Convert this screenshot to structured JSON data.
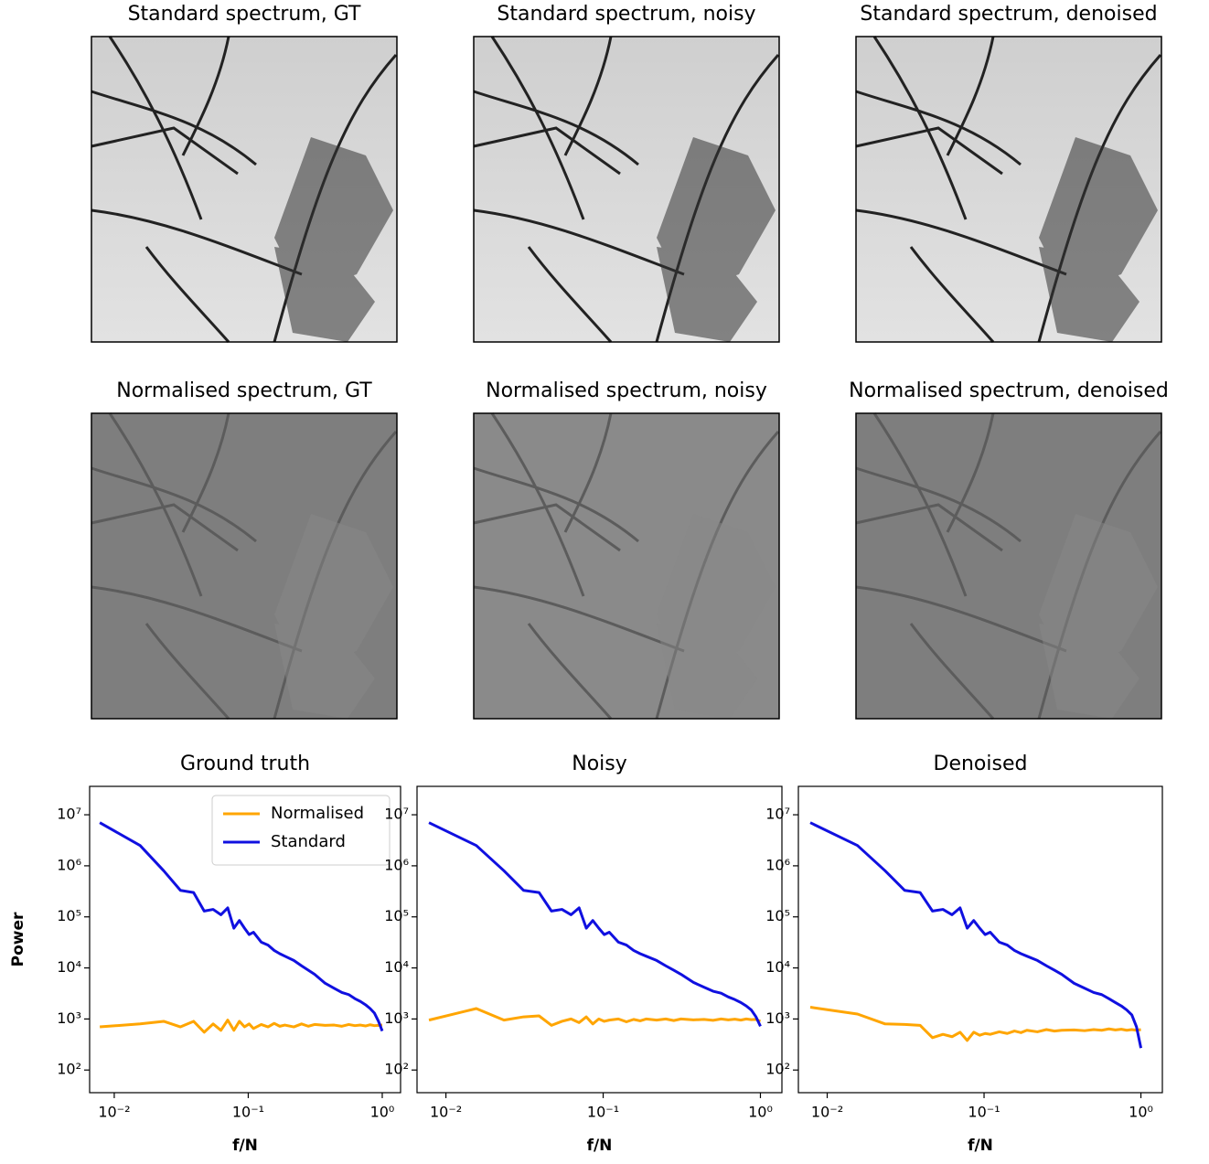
{
  "image_panels": [
    {
      "title": "Standard spectrum, GT"
    },
    {
      "title": "Standard spectrum, noisy"
    },
    {
      "title": "Standard spectrum, denoised"
    },
    {
      "title": "Normalised spectrum, GT"
    },
    {
      "title": "Normalised spectrum, noisy"
    },
    {
      "title": "Normalised spectrum, denoised"
    }
  ],
  "chart_data": [
    {
      "type": "line",
      "title": "Ground truth",
      "xlabel": "f/N",
      "ylabel": "Power",
      "xscale": "log",
      "yscale": "log",
      "legend": "upper right",
      "xlim": [
        0.00655,
        1.37
      ],
      "ylim": [
        36,
        36000000
      ],
      "xticks": [
        {
          "value": 0.01,
          "label": "10⁻²"
        },
        {
          "value": 0.1,
          "label": "10⁻¹"
        },
        {
          "value": 1,
          "label": "10⁰"
        }
      ],
      "yticks": [
        {
          "value": 100,
          "label": "10²"
        },
        {
          "value": 1000,
          "label": "10³"
        },
        {
          "value": 10000,
          "label": "10⁴"
        },
        {
          "value": 100000,
          "label": "10⁵"
        },
        {
          "value": 1000000,
          "label": "10⁶"
        },
        {
          "value": 10000000,
          "label": "10⁷"
        }
      ],
      "x": [
        0.0078,
        0.0156,
        0.0234,
        0.0312,
        0.0391,
        0.0469,
        0.0547,
        0.0625,
        0.0703,
        0.0781,
        0.0859,
        0.0938,
        0.1016,
        0.1094,
        0.125,
        0.1406,
        0.1562,
        0.1719,
        0.1875,
        0.2188,
        0.25,
        0.2812,
        0.3125,
        0.375,
        0.4375,
        0.5,
        0.5625,
        0.625,
        0.6875,
        0.75,
        0.8125,
        0.875,
        0.9375,
        1
      ],
      "series": [
        {
          "name": "Normalised",
          "color": "#ffa500",
          "values": [
            700,
            800,
            900,
            700,
            900,
            550,
            800,
            600,
            950,
            600,
            900,
            700,
            800,
            650,
            780,
            700,
            820,
            720,
            760,
            700,
            800,
            720,
            780,
            750,
            760,
            720,
            780,
            740,
            760,
            730,
            770,
            740,
            750,
            760
          ]
        },
        {
          "name": "Standard",
          "color": "#1010e0",
          "values": [
            7000000,
            2500000,
            800000,
            330000,
            300000,
            130000,
            140000,
            110000,
            150000,
            60000,
            85000,
            60000,
            45000,
            50000,
            32000,
            28000,
            22000,
            19000,
            17000,
            14000,
            11000,
            9000,
            7500,
            5000,
            4000,
            3300,
            3000,
            2500,
            2200,
            1900,
            1600,
            1300,
            900,
            580
          ]
        }
      ]
    },
    {
      "type": "line",
      "title": "Noisy",
      "xlabel": "f/N",
      "xscale": "log",
      "yscale": "log",
      "xlim": [
        0.00655,
        1.37
      ],
      "ylim": [
        36,
        36000000
      ],
      "xticks": [
        {
          "value": 0.01,
          "label": "10⁻²"
        },
        {
          "value": 0.1,
          "label": "10⁻¹"
        },
        {
          "value": 1,
          "label": "10⁰"
        }
      ],
      "yticks": [
        {
          "value": 100,
          "label": "10²"
        },
        {
          "value": 1000,
          "label": "10³"
        },
        {
          "value": 10000,
          "label": "10⁴"
        },
        {
          "value": 100000,
          "label": "10⁵"
        },
        {
          "value": 1000000,
          "label": "10⁶"
        },
        {
          "value": 10000000,
          "label": "10⁷"
        }
      ],
      "x": [
        0.0078,
        0.0156,
        0.0234,
        0.0312,
        0.0391,
        0.0469,
        0.0547,
        0.0625,
        0.0703,
        0.0781,
        0.0859,
        0.0938,
        0.1016,
        0.1094,
        0.125,
        0.1406,
        0.1562,
        0.1719,
        0.1875,
        0.2188,
        0.25,
        0.2812,
        0.3125,
        0.375,
        0.4375,
        0.5,
        0.5625,
        0.625,
        0.6875,
        0.75,
        0.8125,
        0.875,
        0.9375,
        1
      ],
      "series": [
        {
          "name": "Normalised",
          "color": "#ffa500",
          "values": [
            950,
            1600,
            950,
            1100,
            1150,
            750,
            900,
            1000,
            850,
            1100,
            800,
            1000,
            900,
            950,
            1000,
            880,
            980,
            920,
            1000,
            950,
            1000,
            930,
            1000,
            960,
            980,
            940,
            1000,
            960,
            990,
            950,
            1000,
            970,
            980,
            900
          ]
        },
        {
          "name": "Standard",
          "color": "#1010e0",
          "values": [
            7000000,
            2500000,
            800000,
            330000,
            300000,
            130000,
            140000,
            110000,
            150000,
            60000,
            85000,
            60000,
            45000,
            50000,
            32000,
            28000,
            22000,
            19000,
            17000,
            14000,
            11000,
            9000,
            7500,
            5200,
            4200,
            3500,
            3200,
            2700,
            2400,
            2100,
            1800,
            1500,
            1100,
            720
          ]
        }
      ]
    },
    {
      "type": "line",
      "title": "Denoised",
      "xlabel": "f/N",
      "xscale": "log",
      "yscale": "log",
      "xlim": [
        0.00655,
        1.37
      ],
      "ylim": [
        36,
        36000000
      ],
      "xticks": [
        {
          "value": 0.01,
          "label": "10⁻²"
        },
        {
          "value": 0.1,
          "label": "10⁻¹"
        },
        {
          "value": 1,
          "label": "10⁰"
        }
      ],
      "yticks": [
        {
          "value": 100,
          "label": "10²"
        },
        {
          "value": 1000,
          "label": "10³"
        },
        {
          "value": 10000,
          "label": "10⁴"
        },
        {
          "value": 100000,
          "label": "10⁵"
        },
        {
          "value": 1000000,
          "label": "10⁶"
        },
        {
          "value": 10000000,
          "label": "10⁷"
        }
      ],
      "x": [
        0.0078,
        0.0156,
        0.0234,
        0.0312,
        0.0391,
        0.0469,
        0.0547,
        0.0625,
        0.0703,
        0.0781,
        0.0859,
        0.0938,
        0.1016,
        0.1094,
        0.125,
        0.1406,
        0.1562,
        0.1719,
        0.1875,
        0.2188,
        0.25,
        0.2812,
        0.3125,
        0.375,
        0.4375,
        0.5,
        0.5625,
        0.625,
        0.6875,
        0.75,
        0.8125,
        0.875,
        0.9375,
        1
      ],
      "series": [
        {
          "name": "Normalised",
          "color": "#ffa500",
          "values": [
            1700,
            1250,
            800,
            780,
            750,
            430,
            500,
            450,
            550,
            380,
            550,
            480,
            520,
            500,
            560,
            520,
            580,
            540,
            600,
            560,
            620,
            580,
            600,
            610,
            590,
            620,
            600,
            640,
            610,
            630,
            600,
            620,
            600,
            620
          ]
        },
        {
          "name": "Standard",
          "color": "#1010e0",
          "values": [
            7000000,
            2500000,
            800000,
            330000,
            300000,
            130000,
            140000,
            110000,
            150000,
            60000,
            85000,
            60000,
            45000,
            50000,
            32000,
            28000,
            22000,
            19000,
            17000,
            14000,
            11000,
            9000,
            7500,
            5000,
            4000,
            3300,
            3000,
            2500,
            2100,
            1800,
            1500,
            1200,
            700,
            270
          ]
        }
      ]
    }
  ]
}
